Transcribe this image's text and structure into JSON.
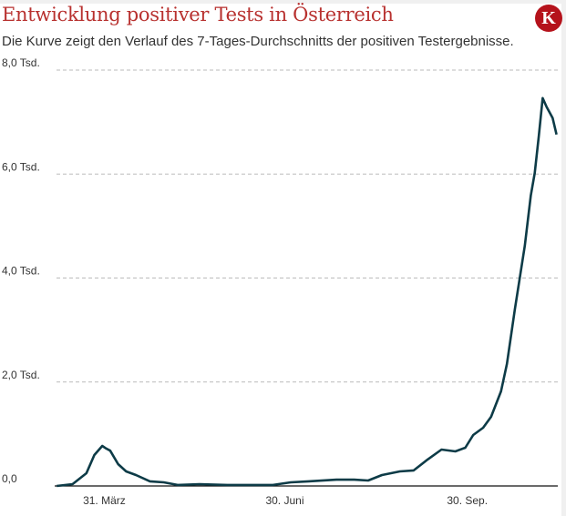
{
  "title": "Entwicklung positiver Tests in Österreich",
  "subtitle": "Die Kurve zeigt den Verlauf des 7-Tages-Durchschnitts der positiven Testergebnisse.",
  "logo": "K",
  "colors": {
    "title": "#b8312f",
    "line": "#0d3b47",
    "logo": "#b5121b"
  },
  "chart_data": {
    "type": "line",
    "title": "Entwicklung positiver Tests in Österreich",
    "ylim": [
      0,
      8000
    ],
    "yticks": [
      {
        "v": 0,
        "label": "0,0"
      },
      {
        "v": 2000,
        "label": "2,0 Tsd."
      },
      {
        "v": 4000,
        "label": "4,0 Tsd."
      },
      {
        "v": 6000,
        "label": "6,0 Tsd."
      },
      {
        "v": 8000,
        "label": "8,0 Tsd."
      }
    ],
    "xticks": [
      {
        "date": "2020-03-31",
        "label": "31. März"
      },
      {
        "date": "2020-06-30",
        "label": "30. Juni"
      },
      {
        "date": "2020-09-30",
        "label": "30. Sep."
      }
    ],
    "xlim": [
      "2020-03-06",
      "2020-11-16"
    ],
    "grid": "horizontal dashed",
    "points": [
      [
        "2020-03-07",
        0
      ],
      [
        "2020-03-15",
        35
      ],
      [
        "2020-03-22",
        245
      ],
      [
        "2020-03-26",
        595
      ],
      [
        "2020-03-30",
        770
      ],
      [
        "2020-04-01",
        720
      ],
      [
        "2020-04-03",
        680
      ],
      [
        "2020-04-07",
        420
      ],
      [
        "2020-04-11",
        280
      ],
      [
        "2020-04-16",
        210
      ],
      [
        "2020-04-23",
        90
      ],
      [
        "2020-04-30",
        70
      ],
      [
        "2020-05-07",
        20
      ],
      [
        "2020-05-18",
        35
      ],
      [
        "2020-06-01",
        20
      ],
      [
        "2020-06-24",
        20
      ],
      [
        "2020-07-03",
        70
      ],
      [
        "2020-07-12",
        90
      ],
      [
        "2020-07-26",
        120
      ],
      [
        "2020-08-04",
        120
      ],
      [
        "2020-08-11",
        105
      ],
      [
        "2020-08-18",
        210
      ],
      [
        "2020-08-27",
        280
      ],
      [
        "2020-09-03",
        300
      ],
      [
        "2020-09-10",
        510
      ],
      [
        "2020-09-17",
        700
      ],
      [
        "2020-09-24",
        665
      ],
      [
        "2020-09-29",
        735
      ],
      [
        "2020-10-03",
        980
      ],
      [
        "2020-10-08",
        1120
      ],
      [
        "2020-10-12",
        1330
      ],
      [
        "2020-10-17",
        1820
      ],
      [
        "2020-10-20",
        2350
      ],
      [
        "2020-10-24",
        3400
      ],
      [
        "2020-10-29",
        4620
      ],
      [
        "2020-11-01",
        5590
      ],
      [
        "2020-11-03",
        6020
      ],
      [
        "2020-11-05",
        6720
      ],
      [
        "2020-11-07",
        7460
      ],
      [
        "2020-11-09",
        7290
      ],
      [
        "2020-11-12",
        7080
      ],
      [
        "2020-11-14",
        6760
      ]
    ]
  }
}
